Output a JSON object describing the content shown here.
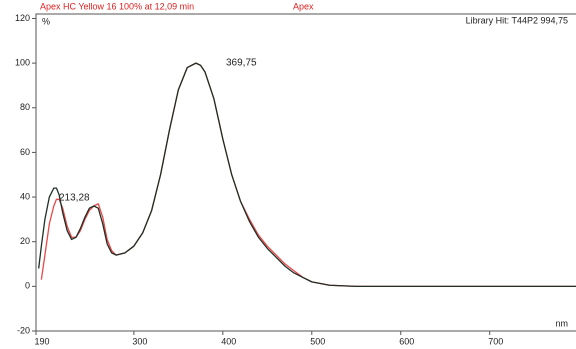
{
  "chart_data": {
    "type": "line",
    "title": "Apex HC Yellow 16 100% at 12,09 min",
    "subtitle": "Apex",
    "y_label": "%",
    "x_label": "nm",
    "library_hit": "Library Hit: T44P2 994,75",
    "annotations": [
      "369,75",
      "213,28"
    ],
    "x": [
      193,
      196,
      200,
      205,
      210,
      213,
      216,
      220,
      225,
      230,
      235,
      240,
      245,
      250,
      255,
      260,
      265,
      270,
      275,
      280,
      290,
      300,
      310,
      320,
      330,
      340,
      350,
      360,
      369.75,
      375,
      380,
      390,
      400,
      410,
      420,
      430,
      440,
      450,
      460,
      470,
      480,
      490,
      500,
      520,
      550,
      600,
      700,
      800
    ],
    "series": [
      {
        "name": "Apex",
        "color": "#1f2f26",
        "values": [
          8,
          18,
          30,
          40,
          44,
          44,
          41,
          33,
          25,
          21,
          22,
          26,
          31,
          35,
          36,
          35,
          28,
          19,
          15,
          14,
          15,
          18,
          24,
          34,
          50,
          70,
          88,
          98,
          100,
          99,
          96,
          84,
          66,
          50,
          38,
          29,
          22,
          17,
          13,
          9,
          6,
          4,
          2,
          0.5,
          0,
          0,
          0,
          0
        ]
      },
      {
        "name": "Library Hit",
        "color": "#e84848",
        "values": [
          null,
          3,
          14,
          28,
          36,
          39,
          39,
          35,
          27,
          22,
          22,
          25,
          30,
          34,
          36,
          37,
          31,
          21,
          16,
          14,
          15,
          18,
          24,
          34,
          50,
          70,
          88,
          98,
          100,
          99,
          96,
          84,
          66,
          50,
          38,
          30,
          23,
          18,
          14,
          10,
          7,
          4,
          2,
          0.5,
          0,
          0,
          0,
          0
        ]
      }
    ],
    "xlim": [
      190,
      797
    ],
    "ylim": [
      -20,
      122
    ],
    "xticks": [
      190,
      300,
      400,
      500,
      600,
      700,
      800
    ],
    "yticks": [
      -20,
      0,
      20,
      40,
      60,
      80,
      100,
      120
    ]
  }
}
